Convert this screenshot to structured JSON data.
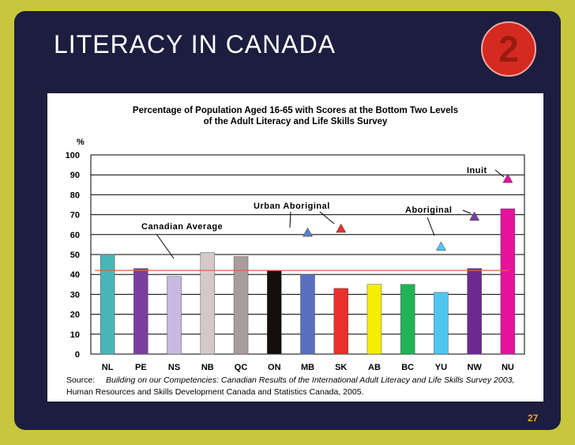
{
  "slide": {
    "title": "LITERACY IN CANADA",
    "badge": "2",
    "page_number": "27",
    "colors": {
      "background": "#c7c63d",
      "slide": "#1d1d3f",
      "badge": "#d42a1f",
      "page_number": "#f5a020"
    }
  },
  "source": {
    "label": "Source:",
    "italic_part": "Building on our Competencies:  Canadian Results of the International Adult Literacy and Life Skills Survey 2003,",
    "rest": " Human Resources and Skills Development Canada and Statistics Canada, 2005."
  },
  "chart_data": {
    "type": "bar",
    "title": "Percentage of Population Aged 16-65 with Scores at the Bottom Two Levels",
    "subtitle": "of the Adult Literacy and Life Skills Survey",
    "ylabel": "%",
    "ylim": [
      0,
      100
    ],
    "yticks": [
      0,
      10,
      20,
      30,
      40,
      50,
      60,
      70,
      80,
      90,
      100
    ],
    "grid": true,
    "categories": [
      "NL",
      "PE",
      "NS",
      "NB",
      "QC",
      "ON",
      "MB",
      "SK",
      "AB",
      "BC",
      "YU",
      "NW",
      "NU"
    ],
    "values": [
      50,
      43,
      39,
      51,
      49,
      42,
      40,
      33,
      35,
      35,
      31,
      43,
      73
    ],
    "bar_colors": [
      "#4ab5b8",
      "#7a3f9e",
      "#c9b8df",
      "#d4c9c6",
      "#a89d9c",
      "#140e0c",
      "#5a6fbe",
      "#e8312b",
      "#f4ee00",
      "#20b457",
      "#4fc6f0",
      "#6a2a8f",
      "#e5139b"
    ],
    "canadian_average": {
      "label": "Canadian Average",
      "value": 42,
      "color": "#e0643c"
    },
    "markers": [
      {
        "category": "MB",
        "value": 61,
        "color": "#5a7fcf",
        "label": "Urban Aboriginal"
      },
      {
        "category": "SK",
        "value": 63,
        "color": "#e8312b",
        "label": "Urban Aboriginal"
      },
      {
        "category": "YU",
        "value": 54,
        "color": "#4fc6f0",
        "label": "Aboriginal"
      },
      {
        "category": "NW",
        "value": 69,
        "color": "#7a3f9e",
        "label": "Aboriginal"
      },
      {
        "category": "NU",
        "value": 88,
        "color": "#e5139b",
        "label": "Inuit"
      }
    ]
  }
}
